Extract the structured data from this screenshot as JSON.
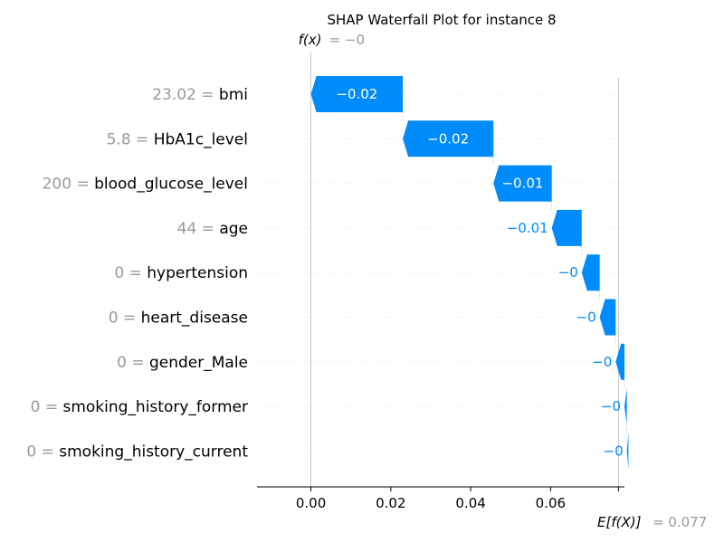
{
  "chart_data": {
    "type": "waterfall",
    "title": "SHAP Waterfall Plot for instance 8",
    "fx_label": "f(x)",
    "fx_value_text": "= −0",
    "ex_label": "E[f(X)]",
    "ex_value_text": "= 0.077",
    "base_value": 0.077,
    "output_value": 0.0,
    "xlim": [
      -0.0135,
      0.0785
    ],
    "xticks": [
      0.0,
      0.02,
      0.04,
      0.06
    ],
    "xtick_labels": [
      "0.00",
      "0.02",
      "0.04",
      "0.06"
    ],
    "features": [
      {
        "value": "23.02",
        "name": "bmi",
        "contribution": -0.023,
        "label": "−0.02"
      },
      {
        "value": "5.8",
        "name": "HbA1c_level",
        "contribution": -0.0227,
        "label": "−0.02"
      },
      {
        "value": "200",
        "name": "blood_glucose_level",
        "contribution": -0.0146,
        "label": "−0.01"
      },
      {
        "value": "44",
        "name": "age",
        "contribution": -0.0075,
        "label": "−0.01"
      },
      {
        "value": "0",
        "name": "hypertension",
        "contribution": -0.0045,
        "label": "−0"
      },
      {
        "value": "0",
        "name": "heart_disease",
        "contribution": -0.004,
        "label": "−0"
      },
      {
        "value": "0",
        "name": "gender_Male",
        "contribution": -0.0022,
        "label": "−0"
      },
      {
        "value": "0",
        "name": "smoking_history_former",
        "contribution": -0.0006,
        "label": "−0"
      },
      {
        "value": "0",
        "name": "smoking_history_current",
        "contribution": -0.0004,
        "label": "−0"
      }
    ],
    "colors": {
      "negative": "#008bfb",
      "positive": "#ff0051",
      "feature_value_text": "#999999",
      "feature_name_text": "#000000",
      "grid": "#dddddd"
    }
  }
}
